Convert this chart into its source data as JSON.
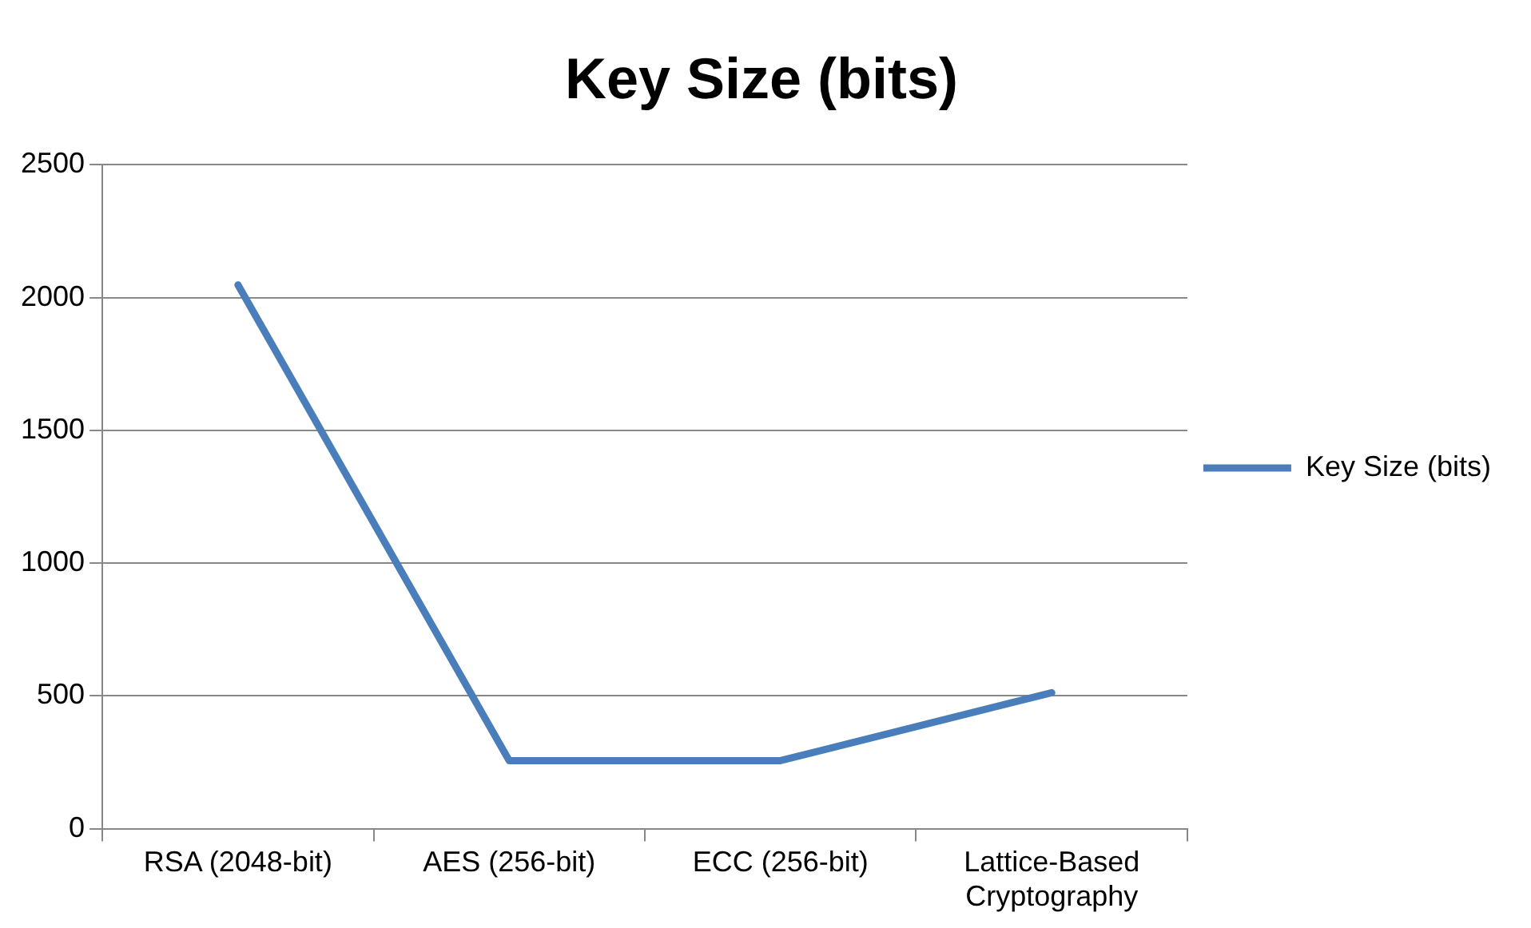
{
  "chart_data": {
    "type": "line",
    "title": "Key Size (bits)",
    "categories": [
      "RSA (2048-bit)",
      "AES (256-bit)",
      "ECC (256-bit)",
      "Lattice-Based Cryptography"
    ],
    "series": [
      {
        "name": "Key Size (bits)",
        "color": "#4a7ebb",
        "values": [
          2048,
          256,
          256,
          512
        ]
      }
    ],
    "ylim": [
      0,
      2500
    ],
    "yticks": [
      0,
      500,
      1000,
      1500,
      2000,
      2500
    ],
    "grid": "y",
    "legend": "right",
    "marker": "none",
    "line_style": "solid"
  }
}
